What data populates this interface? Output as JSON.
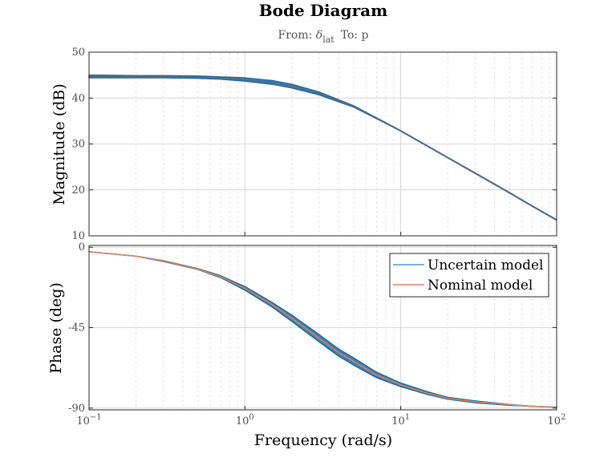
{
  "chart_data": {
    "type": "line",
    "title": "Bode Diagram",
    "subtitle": {
      "from_prefix": "From: ",
      "from_symbol": "δ",
      "from_subscript": "lat",
      "to_text": "To: p"
    },
    "xlabel": "Frequency  (rad/s)",
    "xscale": "log",
    "xlim": [
      0.1,
      100
    ],
    "xticks": [
      {
        "value": 0.1,
        "base": "10",
        "exp": "−1"
      },
      {
        "value": 1,
        "base": "10",
        "exp": "0"
      },
      {
        "value": 10,
        "base": "10",
        "exp": "1"
      },
      {
        "value": 100,
        "base": "10",
        "exp": "2"
      }
    ],
    "grid": true,
    "legend": {
      "placement": "top-right",
      "panel": "phase",
      "entries": [
        {
          "label": "Uncertain model",
          "color": "#4a9bd1"
        },
        {
          "label": "Nominal model",
          "color": "#d9825b"
        }
      ]
    },
    "magnitude": {
      "ylabel": "Magnitude (dB)",
      "ylim": [
        10,
        50
      ],
      "yticks": [
        "10",
        "20",
        "30",
        "40",
        "50"
      ],
      "series": [
        {
          "name": "Uncertain model",
          "color": "#1f6aa5",
          "x": [
            0.1,
            0.2,
            0.3,
            0.5,
            0.7,
            1,
            1.5,
            2,
            3,
            5,
            7,
            10,
            20,
            30,
            50,
            70,
            100
          ],
          "y_upper": [
            45,
            44.9,
            44.9,
            44.8,
            44.6,
            44.4,
            43.8,
            43.0,
            41.3,
            38.3,
            35.7,
            32.9,
            27.1,
            23.7,
            19.4,
            16.5,
            13.5
          ],
          "y_lower": [
            44.4,
            44.4,
            44.4,
            44.3,
            44.1,
            43.7,
            43.0,
            42.2,
            40.7,
            38.0,
            35.5,
            32.8,
            27.0,
            23.6,
            19.3,
            16.4,
            13.4
          ]
        },
        {
          "name": "Nominal model",
          "color": "#5b6b7b",
          "x": [
            0.1,
            0.2,
            0.3,
            0.5,
            0.7,
            1,
            1.5,
            2,
            3,
            5,
            7,
            10,
            20,
            30,
            50,
            70,
            100
          ],
          "y": [
            44.7,
            44.7,
            44.6,
            44.5,
            44.3,
            44.0,
            43.4,
            42.6,
            41.0,
            38.1,
            35.6,
            32.8,
            27.0,
            23.6,
            19.3,
            16.4,
            13.4
          ]
        }
      ]
    },
    "phase": {
      "ylabel": "Phase (deg)",
      "ylim": [
        -91,
        1
      ],
      "yticks": [
        "-90",
        "-45",
        "0"
      ],
      "ytick_values": [
        -90,
        -45,
        0
      ],
      "series": [
        {
          "name": "Uncertain model",
          "color": "#1f6aa5",
          "x": [
            0.1,
            0.2,
            0.3,
            0.5,
            0.7,
            1,
            1.5,
            2,
            3,
            4,
            5,
            7,
            10,
            15,
            20,
            30,
            50,
            70,
            100
          ],
          "y_upper": [
            -2.5,
            -5,
            -7.5,
            -12,
            -16,
            -22,
            -31,
            -38,
            -49,
            -57,
            -62,
            -70,
            -76,
            -81,
            -84,
            -86,
            -88,
            -89,
            -89.5
          ],
          "y_lower": [
            -2.5,
            -5,
            -8,
            -12.5,
            -17,
            -24,
            -33.5,
            -41.5,
            -53,
            -61,
            -66,
            -73,
            -78,
            -82.5,
            -85,
            -87,
            -88.5,
            -89,
            -89.5
          ]
        },
        {
          "name": "Nominal model",
          "color": "#d9825b",
          "x": [
            0.1,
            0.2,
            0.3,
            0.5,
            0.7,
            1,
            1.5,
            2,
            3,
            4,
            5,
            7,
            10,
            15,
            20,
            30,
            50,
            70,
            100
          ],
          "y": [
            -2.5,
            -5,
            -7.7,
            -12.3,
            -16.5,
            -23,
            -32.2,
            -39.7,
            -51,
            -59,
            -64,
            -71.5,
            -77,
            -81.8,
            -84.5,
            -86.5,
            -88.2,
            -89,
            -89.5
          ]
        }
      ]
    }
  }
}
